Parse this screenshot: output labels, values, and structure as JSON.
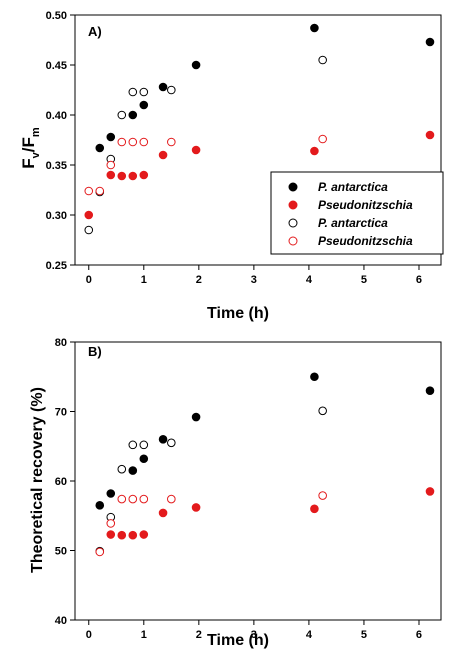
{
  "chart_data": [
    {
      "type": "scatter",
      "panel_label": "A)",
      "xlabel": "Time (h)",
      "ylabel_main": "F",
      "ylabel_sub1": "v",
      "ylabel_mid": "/F",
      "ylabel_sub2": "m",
      "xlim": [
        -0.25,
        6.4
      ],
      "ylim": [
        0.25,
        0.5
      ],
      "xticks": [
        "0",
        "1",
        "2",
        "3",
        "4",
        "5",
        "6"
      ],
      "yticks": [
        "0.25",
        "0.30",
        "0.35",
        "0.40",
        "0.45",
        "0.50"
      ],
      "colors": {
        "black": "#000000",
        "red": "#e31a1c"
      },
      "legend": {
        "placement": "right",
        "entries": [
          "P. antarctica",
          "Pseudonitzschia",
          "P. antarctica",
          "Pseudonitzschia"
        ]
      },
      "series": [
        {
          "name": "P. antarctica",
          "marker": "filled",
          "color": "black",
          "points": [
            [
              0.2,
              0.367
            ],
            [
              0.4,
              0.378
            ],
            [
              0.8,
              0.4
            ],
            [
              1.0,
              0.41
            ],
            [
              1.35,
              0.428
            ],
            [
              1.95,
              0.45
            ],
            [
              4.1,
              0.487
            ],
            [
              6.2,
              0.473
            ]
          ]
        },
        {
          "name": "Pseudonitzschia",
          "marker": "filled",
          "color": "red",
          "points": [
            [
              0.0,
              0.3
            ],
            [
              0.4,
              0.34
            ],
            [
              0.6,
              0.339
            ],
            [
              0.8,
              0.339
            ],
            [
              1.0,
              0.34
            ],
            [
              1.35,
              0.36
            ],
            [
              1.95,
              0.365
            ],
            [
              4.1,
              0.364
            ],
            [
              6.2,
              0.38
            ]
          ]
        },
        {
          "name": "P. antarctica",
          "marker": "open",
          "color": "black",
          "points": [
            [
              0.0,
              0.285
            ],
            [
              0.2,
              0.323
            ],
            [
              0.4,
              0.356
            ],
            [
              0.6,
              0.4
            ],
            [
              0.8,
              0.423
            ],
            [
              1.0,
              0.423
            ],
            [
              1.5,
              0.425
            ],
            [
              4.25,
              0.455
            ]
          ]
        },
        {
          "name": "Pseudonitzschia",
          "marker": "open",
          "color": "red",
          "points": [
            [
              0.0,
              0.324
            ],
            [
              0.2,
              0.324
            ],
            [
              0.4,
              0.35
            ],
            [
              0.6,
              0.373
            ],
            [
              0.8,
              0.373
            ],
            [
              1.0,
              0.373
            ],
            [
              1.5,
              0.373
            ],
            [
              4.25,
              0.376
            ]
          ]
        }
      ]
    },
    {
      "type": "scatter",
      "panel_label": "B)",
      "xlabel": "Time (h)",
      "ylabel": "Theoretical recovery (%)",
      "xlim": [
        -0.25,
        6.4
      ],
      "ylim": [
        40,
        80
      ],
      "xticks": [
        "0",
        "1",
        "2",
        "3",
        "4",
        "5",
        "6"
      ],
      "yticks": [
        "40",
        "50",
        "60",
        "70",
        "80"
      ],
      "colors": {
        "black": "#000000",
        "red": "#e31a1c"
      },
      "series": [
        {
          "name": "P. antarctica",
          "marker": "filled",
          "color": "black",
          "points": [
            [
              0.2,
              56.5
            ],
            [
              0.4,
              58.2
            ],
            [
              0.8,
              61.5
            ],
            [
              1.0,
              63.2
            ],
            [
              1.35,
              66.0
            ],
            [
              1.95,
              69.2
            ],
            [
              4.1,
              75.0
            ],
            [
              6.2,
              73.0
            ]
          ]
        },
        {
          "name": "Pseudonitzschia",
          "marker": "filled",
          "color": "red",
          "points": [
            [
              0.4,
              52.3
            ],
            [
              0.6,
              52.2
            ],
            [
              0.8,
              52.2
            ],
            [
              1.0,
              52.3
            ],
            [
              1.35,
              55.4
            ],
            [
              1.95,
              56.2
            ],
            [
              4.1,
              56.0
            ],
            [
              6.2,
              58.5
            ]
          ]
        },
        {
          "name": "P. antarctica",
          "marker": "open",
          "color": "black",
          "points": [
            [
              0.2,
              49.9
            ],
            [
              0.4,
              54.8
            ],
            [
              0.6,
              61.7
            ],
            [
              0.8,
              65.2
            ],
            [
              1.0,
              65.2
            ],
            [
              1.5,
              65.5
            ],
            [
              4.25,
              70.1
            ]
          ]
        },
        {
          "name": "Pseudonitzschia",
          "marker": "open",
          "color": "red",
          "points": [
            [
              0.2,
              49.8
            ],
            [
              0.4,
              53.9
            ],
            [
              0.6,
              57.4
            ],
            [
              0.8,
              57.4
            ],
            [
              1.0,
              57.4
            ],
            [
              1.5,
              57.4
            ],
            [
              4.25,
              57.9
            ]
          ]
        }
      ]
    }
  ]
}
